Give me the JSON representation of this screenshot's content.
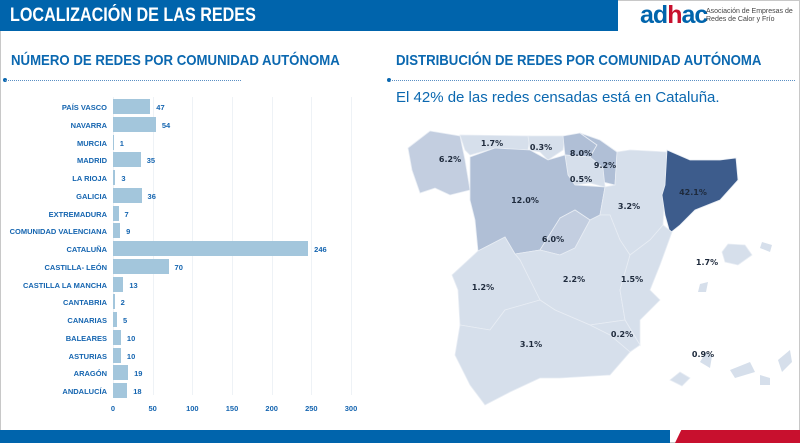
{
  "header": {
    "title": "LOCALIZACIÓN DE LAS REDES",
    "logo_text": "adhac",
    "logo_subtitle": "Asociación de Empresas de Redes de Calor y Frío"
  },
  "left_section": {
    "title": "NÚMERO DE REDES POR COMUNIDAD AUTÓNOMA"
  },
  "right_section": {
    "title": "DISTRIBUCIÓN DE REDES POR COMUNIDAD AUTÓNOMA",
    "subtitle": "El 42% de las redes censadas está en Cataluña."
  },
  "colors": {
    "brand_blue": "#0064ac",
    "brand_red": "#c8102e",
    "bar": "#a3c6dc",
    "map_light": "#d6dfeb",
    "map_mid": "#b0bfd6",
    "map_dark": "#3d5c8c"
  },
  "chart_data": [
    {
      "type": "bar",
      "orientation": "horizontal",
      "title": "NÚMERO DE REDES POR COMUNIDAD AUTÓNOMA",
      "categories": [
        "PAÍS VASCO",
        "NAVARRA",
        "MURCIA",
        "MADRID",
        "LA RIOJA",
        "GALICIA",
        "EXTREMADURA",
        "COMUNIDAD VALENCIANA",
        "CATALUÑA",
        "CASTILLA- LEÓN",
        "CASTILLA LA MANCHA",
        "CANTABRIA",
        "CANARIAS",
        "BALEARES",
        "ASTURIAS",
        "ARAGÓN",
        "ANDALUCÍA"
      ],
      "values": [
        47,
        54,
        1,
        35,
        3,
        36,
        7,
        9,
        246,
        70,
        13,
        2,
        5,
        10,
        10,
        19,
        18
      ],
      "xlim": [
        0,
        300
      ],
      "xticks": [
        0,
        50,
        100,
        150,
        200,
        250,
        300
      ],
      "grid": true
    },
    {
      "type": "choropleth",
      "title": "DISTRIBUCIÓN DE REDES POR COMUNIDAD AUTÓNOMA",
      "regions": [
        {
          "name": "Galicia",
          "label": "6.2%",
          "value": 6.2
        },
        {
          "name": "Asturias",
          "label": "1.7%",
          "value": 1.7
        },
        {
          "name": "Cantabria",
          "label": "0.3%",
          "value": 0.3
        },
        {
          "name": "País Vasco",
          "label": "8.0%",
          "value": 8.0
        },
        {
          "name": "Navarra",
          "label": "9.2%",
          "value": 9.2
        },
        {
          "name": "La Rioja",
          "label": "0.5%",
          "value": 0.5
        },
        {
          "name": "Castilla-León",
          "label": "12.0%",
          "value": 12.0
        },
        {
          "name": "Madrid",
          "label": "6.0%",
          "value": 6.0
        },
        {
          "name": "Aragón",
          "label": "3.2%",
          "value": 3.2
        },
        {
          "name": "Cataluña",
          "label": "42.1%",
          "value": 42.1
        },
        {
          "name": "Castilla La Mancha",
          "label": "2.2%",
          "value": 2.2
        },
        {
          "name": "Extremadura",
          "label": "1.2%",
          "value": 1.2
        },
        {
          "name": "Comunidad Valenciana",
          "label": "1.5%",
          "value": 1.5
        },
        {
          "name": "Murcia",
          "label": "0.2%",
          "value": 0.2
        },
        {
          "name": "Andalucía",
          "label": "3.1%",
          "value": 3.1
        },
        {
          "name": "Baleares",
          "label": "1.7%",
          "value": 1.7
        },
        {
          "name": "Canarias",
          "label": "0.9%",
          "value": 0.9
        }
      ]
    }
  ]
}
